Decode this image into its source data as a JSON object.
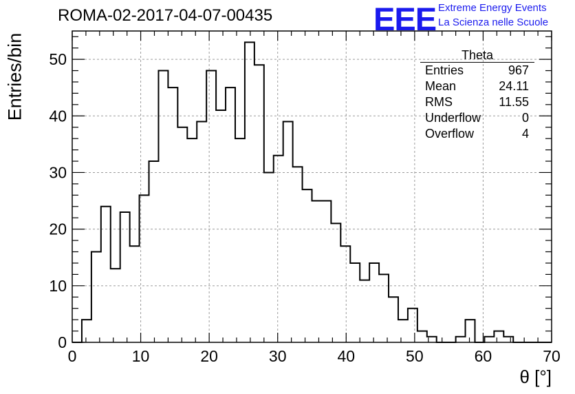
{
  "title": "ROMA-02-2017-04-07-00435",
  "logo": {
    "mark": "EEE",
    "line1": "Extreme Energy Events",
    "line2": "La Scienza nelle Scuole",
    "color": "#1a1aee"
  },
  "stats": {
    "title": "Theta",
    "rows": [
      {
        "label": "Entries",
        "value": "967"
      },
      {
        "label": "Mean",
        "value": "24.11"
      },
      {
        "label": "RMS",
        "value": "11.55"
      },
      {
        "label": "Underflow",
        "value": "0"
      },
      {
        "label": "Overflow",
        "value": "4"
      }
    ]
  },
  "chart_data": {
    "type": "histogram",
    "xlabel": "θ [°]",
    "ylabel": "Entries/bin",
    "xlim": [
      0,
      70
    ],
    "ylim": [
      0,
      55
    ],
    "bin_width": 1.4,
    "bin_edges_start": 0,
    "values": [
      0,
      4,
      16,
      24,
      13,
      23,
      17,
      26,
      32,
      48,
      45,
      38,
      36,
      39,
      48,
      41,
      45,
      36,
      53,
      49,
      30,
      33,
      39,
      31,
      27,
      25,
      25,
      21,
      17,
      14,
      11,
      14,
      12,
      8,
      4,
      6,
      2,
      1,
      0,
      0,
      1,
      4,
      0,
      1,
      2,
      1,
      0,
      0,
      0,
      0
    ],
    "x_ticks": [
      "0",
      "10",
      "20",
      "30",
      "40",
      "50",
      "60",
      "70"
    ],
    "y_ticks": [
      "0",
      "10",
      "20",
      "30",
      "40",
      "50"
    ],
    "grid": true,
    "line_color": "#000000"
  }
}
